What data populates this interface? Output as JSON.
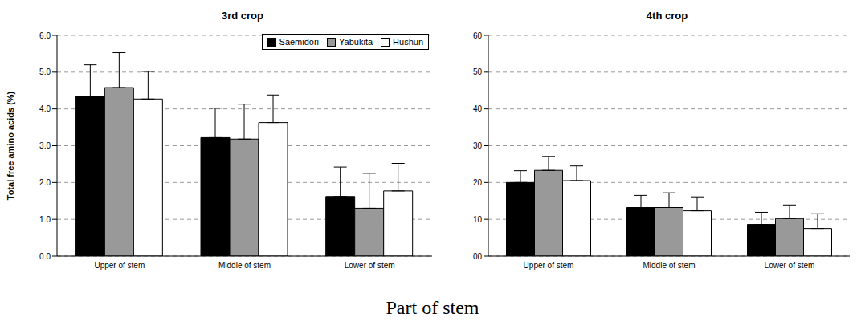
{
  "x_label": "Part of stem",
  "chart_data": [
    {
      "type": "bar",
      "title": "3rd crop",
      "y_label": "Total free amino acids (%)",
      "categories": [
        "Upper of stem",
        "Middle of stem",
        "Lower of stem"
      ],
      "series": [
        {
          "name": "Saemidori",
          "color": "#000000",
          "values": [
            4.35,
            3.22,
            1.62
          ],
          "errors": [
            0.85,
            0.8,
            0.8
          ]
        },
        {
          "name": "Yabukita",
          "color": "#999999",
          "values": [
            4.58,
            3.18,
            1.3
          ],
          "errors": [
            0.95,
            0.95,
            0.95
          ]
        },
        {
          "name": "Hushun",
          "color": "#ffffff",
          "values": [
            4.27,
            3.63,
            1.77
          ],
          "errors": [
            0.75,
            0.75,
            0.75
          ]
        }
      ],
      "ylim": [
        0,
        6
      ],
      "yticks": [
        {
          "value": 0,
          "label": "0.0"
        },
        {
          "value": 1,
          "label": "1.0"
        },
        {
          "value": 2,
          "label": "2.0"
        },
        {
          "value": 3,
          "label": "3.0"
        },
        {
          "value": 4,
          "label": "4.0"
        },
        {
          "value": 5,
          "label": "5.0"
        },
        {
          "value": 6,
          "label": "6.0"
        }
      ],
      "grid": true,
      "legend": "upper right"
    },
    {
      "type": "bar",
      "title": "4th crop",
      "categories": [
        "Upper of stem",
        "Middle of stem",
        "Lower of stem"
      ],
      "series": [
        {
          "name": "Saemidori",
          "color": "#000000",
          "values": [
            20,
            13.2,
            8.6
          ],
          "errors": [
            3.2,
            3.3,
            3.3
          ]
        },
        {
          "name": "Yabukita",
          "color": "#999999",
          "values": [
            23.3,
            13.2,
            10.2
          ],
          "errors": [
            3.8,
            4,
            3.7
          ]
        },
        {
          "name": "Hushun",
          "color": "#ffffff",
          "values": [
            20.5,
            12.3,
            7.5
          ],
          "errors": [
            4,
            3.8,
            4
          ]
        }
      ],
      "ylim": [
        0,
        60
      ],
      "yticks": [
        {
          "value": 0,
          "label": "00"
        },
        10,
        20,
        30,
        40,
        50,
        60
      ],
      "grid": true
    }
  ]
}
